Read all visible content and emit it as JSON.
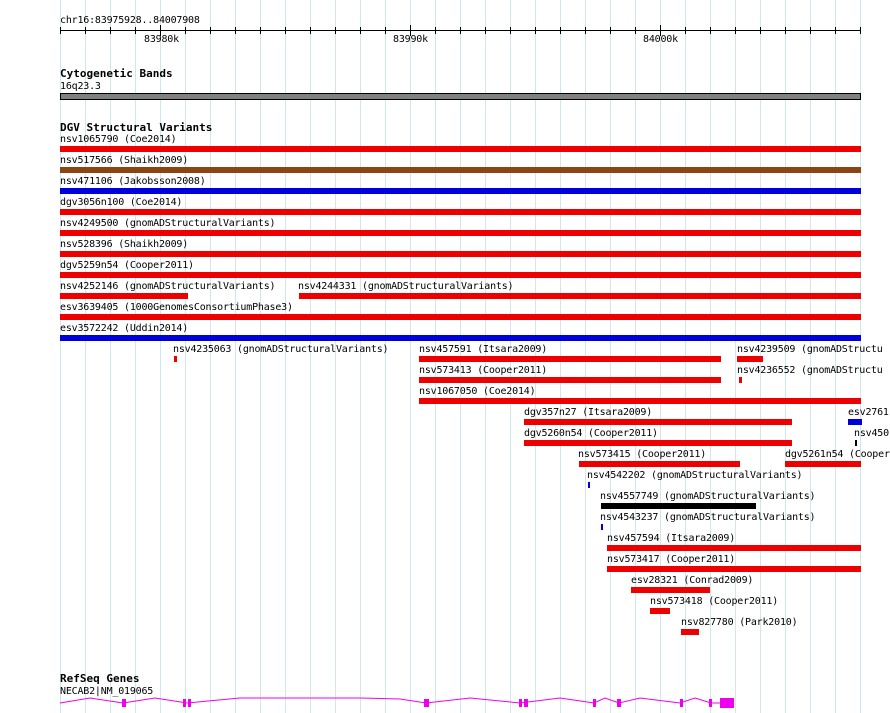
{
  "ruler": {
    "range_label": "chr16:83975928..84007908",
    "labels": [
      {
        "text": "83980k",
        "pos": 83980000
      },
      {
        "text": "83990k",
        "pos": 83990000
      },
      {
        "text": "84000k",
        "pos": 84000000
      }
    ]
  },
  "tracks": {
    "cytoband": {
      "title": "Cytogenetic Bands",
      "band_name": "16q23.3",
      "color": "#808080"
    },
    "dgv": {
      "title": "DGV Structural Variants",
      "colors": {
        "loss": "#ee0000",
        "gain": "#0000dd",
        "inversion": "#8b4513",
        "complex": "#000000"
      },
      "features": [
        {
          "label": "nsv1065790 (Coe2014)",
          "type": "loss"
        },
        {
          "label": "nsv517566 (Shaikh2009)",
          "type": "inversion"
        },
        {
          "label": "nsv471106 (Jakobsson2008)",
          "type": "gain"
        },
        {
          "label": "dgv3056n100 (Coe2014)",
          "type": "loss"
        },
        {
          "label": "nsv4249500 (gnomADStructuralVariants)",
          "type": "loss"
        },
        {
          "label": "nsv528396 (Shaikh2009)",
          "type": "loss"
        },
        {
          "label": "dgv5259n54 (Cooper2011)",
          "type": "loss"
        },
        {
          "label": "nsv4252146 (gnomADStructuralVariants)",
          "type": "loss"
        },
        {
          "label": "nsv4244331 (gnomADStructuralVariants)",
          "type": "loss"
        },
        {
          "label": "esv3639405 (1000GenomesConsortiumPhase3)",
          "type": "loss"
        },
        {
          "label": "esv3572242 (Uddin2014)",
          "type": "gain"
        },
        {
          "label": "nsv4235063 (gnomADStructuralVariants)",
          "type": "loss"
        },
        {
          "label": "nsv457591 (Itsara2009)",
          "type": "loss"
        },
        {
          "label": "nsv4239509 (gnomADStructu",
          "type": "loss"
        },
        {
          "label": "nsv573413 (Cooper2011)",
          "type": "loss"
        },
        {
          "label": "nsv4236552 (gnomADStructu",
          "type": "loss"
        },
        {
          "label": "nsv1067050 (Coe2014)",
          "type": "loss"
        },
        {
          "label": "dgv357n27 (Itsara2009)",
          "type": "loss"
        },
        {
          "label": "esv2761",
          "type": "gain"
        },
        {
          "label": "dgv5260n54 (Cooper2011)",
          "type": "loss"
        },
        {
          "label": "nsv450",
          "type": "complex"
        },
        {
          "label": "nsv573415 (Cooper2011)",
          "type": "loss"
        },
        {
          "label": "dgv5261n54 (Cooper2011)",
          "type": "loss"
        },
        {
          "label": "nsv4542202 (gnomADStructuralVariants)",
          "type": "gain"
        },
        {
          "label": "nsv4557749 (gnomADStructuralVariants)",
          "type": "complex"
        },
        {
          "label": "nsv4543237 (gnomADStructuralVariants)",
          "type": "gain"
        },
        {
          "label": "nsv457594 (Itsara2009)",
          "type": "loss"
        },
        {
          "label": "nsv573417 (Cooper2011)",
          "type": "loss"
        },
        {
          "label": "esv28321 (Conrad2009)",
          "type": "loss"
        },
        {
          "label": "nsv573418 (Cooper2011)",
          "type": "loss"
        },
        {
          "label": "nsv827780 (Park2010)",
          "type": "loss"
        }
      ]
    },
    "refseq": {
      "title": "RefSeq Genes",
      "gene_label": "NECAB2|NM_019065",
      "color": "#ee00ee"
    }
  }
}
